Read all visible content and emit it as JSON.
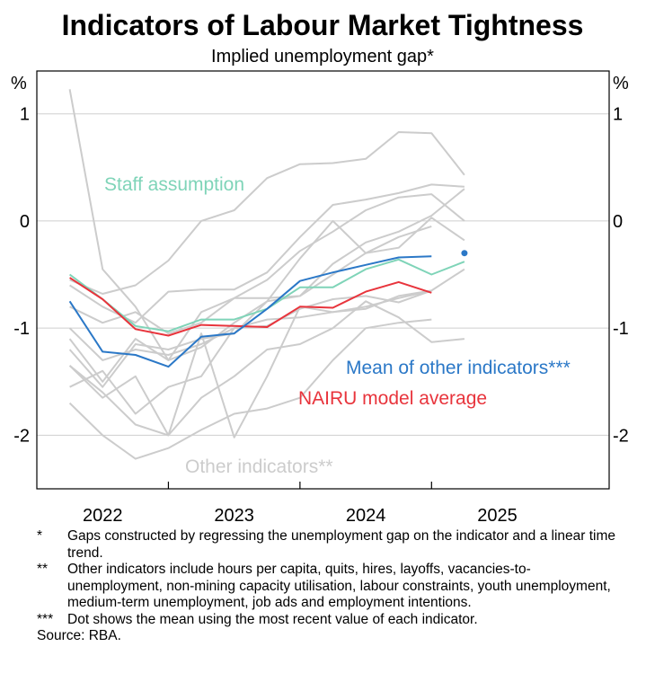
{
  "chart_data": {
    "type": "line",
    "title": "Indicators of Labour Market Tightness",
    "subtitle": "Implied unemployment gap*",
    "y_unit_left": "%",
    "y_unit_right": "%",
    "ylim": [
      -2.5,
      1.4
    ],
    "yticks": [
      1,
      0,
      -1,
      -2
    ],
    "ytick_labels": [
      "1",
      "0",
      "-1",
      "-2"
    ],
    "xlim": [
      2021.5,
      2025.85
    ],
    "xticks": [
      2022,
      2023,
      2024,
      2025
    ],
    "xtick_labels": [
      "2022",
      "2023",
      "2024",
      "2025"
    ],
    "year_separators": [
      2022.5,
      2023.5,
      2024.5
    ],
    "grid": true,
    "series": [
      {
        "name": "Staff assumption",
        "color": "#7fd4b8",
        "x": [
          2021.75,
          2022.0,
          2022.25,
          2022.5,
          2022.75,
          2023.0,
          2023.25,
          2023.5,
          2023.75,
          2024.0,
          2024.25,
          2024.5,
          2024.75
        ],
        "values": [
          -0.5,
          -0.73,
          -0.98,
          -1.03,
          -0.92,
          -0.92,
          -0.82,
          -0.62,
          -0.62,
          -0.45,
          -0.36,
          -0.5,
          -0.38
        ]
      },
      {
        "name": "NAIRU model average",
        "color": "#e8343c",
        "x": [
          2021.75,
          2022.0,
          2022.25,
          2022.5,
          2022.75,
          2023.0,
          2023.25,
          2023.5,
          2023.75,
          2024.0,
          2024.25,
          2024.5
        ],
        "values": [
          -0.53,
          -0.73,
          -1.01,
          -1.07,
          -0.97,
          -0.98,
          -0.99,
          -0.8,
          -0.81,
          -0.66,
          -0.57,
          -0.67
        ]
      },
      {
        "name": "Mean of other indicators***",
        "color": "#2b78c7",
        "x": [
          2021.75,
          2022.0,
          2022.25,
          2022.5,
          2022.75,
          2023.0,
          2023.25,
          2023.5,
          2023.75,
          2024.0,
          2024.25,
          2024.5
        ],
        "values": [
          -0.75,
          -1.22,
          -1.25,
          -1.36,
          -1.08,
          -1.05,
          -0.82,
          -0.56,
          -0.48,
          -0.41,
          -0.34,
          -0.33
        ],
        "dot": {
          "x": 2024.75,
          "value": -0.3
        }
      },
      {
        "name": "Other indicators**",
        "color": "#cccccc",
        "lines": [
          {
            "x": [
              2021.75,
              2022.0,
              2022.25,
              2022.5,
              2022.75,
              2023.0,
              2023.25,
              2023.5,
              2023.75,
              2024.0,
              2024.25,
              2024.5,
              2024.75
            ],
            "values": [
              1.23,
              -0.45,
              -0.8,
              -1.3,
              -0.85,
              -0.72,
              -0.72,
              -0.7,
              -0.4,
              -0.2,
              -0.1,
              0.05,
              0.3
            ]
          },
          {
            "x": [
              2021.75,
              2022.0,
              2022.25,
              2022.5,
              2022.75,
              2023.0,
              2023.25,
              2023.5,
              2023.75,
              2024.0,
              2024.25,
              2024.5,
              2024.75
            ],
            "values": [
              -0.55,
              -0.68,
              -0.6,
              -0.37,
              0.0,
              0.1,
              0.4,
              0.53,
              0.54,
              0.58,
              0.83,
              0.82,
              0.43
            ]
          },
          {
            "x": [
              2021.75,
              2022.0,
              2022.25,
              2022.5,
              2022.75,
              2023.0,
              2023.25,
              2023.5,
              2023.75,
              2024.0,
              2024.25,
              2024.5,
              2024.75
            ],
            "values": [
              -0.6,
              -0.8,
              -0.95,
              -0.66,
              -0.64,
              -0.64,
              -0.48,
              -0.15,
              0.15,
              0.2,
              0.26,
              0.34,
              0.32
            ]
          },
          {
            "x": [
              2021.75,
              2022.0,
              2022.25,
              2022.5,
              2022.75,
              2023.0,
              2023.25,
              2023.5,
              2023.75,
              2024.0,
              2024.25,
              2024.5,
              2024.75
            ],
            "values": [
              -0.8,
              -0.95,
              -0.85,
              -1.05,
              -0.95,
              -0.72,
              -0.55,
              -0.28,
              -0.1,
              0.1,
              0.22,
              0.25,
              0.0
            ]
          },
          {
            "x": [
              2021.75,
              2022.0,
              2022.25,
              2022.5,
              2022.75,
              2023.0,
              2023.25,
              2023.5,
              2023.75,
              2024.0,
              2024.25,
              2024.5,
              2024.75
            ],
            "values": [
              -1.1,
              -1.5,
              -1.1,
              -1.3,
              -1.18,
              -0.95,
              -0.75,
              -0.35,
              0.0,
              -0.3,
              -0.25,
              0.03,
              -0.18
            ]
          },
          {
            "x": [
              2021.75,
              2022.0,
              2022.25,
              2022.5,
              2022.75,
              2023.0,
              2023.25,
              2023.5,
              2023.75,
              2024.0,
              2024.25,
              2024.5
            ],
            "values": [
              -1.2,
              -1.55,
              -1.15,
              -1.2,
              -1.1,
              -1.05,
              -0.75,
              -0.7,
              -0.5,
              -0.3,
              -0.15,
              -0.05
            ]
          },
          {
            "x": [
              2021.75,
              2022.0,
              2022.25,
              2022.5,
              2022.75,
              2023.0,
              2023.25,
              2023.5,
              2023.75,
              2024.0,
              2024.25,
              2024.5
            ],
            "values": [
              -1.35,
              -1.65,
              -1.45,
              -2.0,
              -1.05,
              -2.02,
              -1.45,
              -0.8,
              -0.85,
              -0.82,
              -0.7,
              -0.65
            ]
          },
          {
            "x": [
              2021.75,
              2022.0,
              2022.25,
              2022.5,
              2022.75,
              2023.0,
              2023.25,
              2023.5,
              2023.75,
              2024.0,
              2024.25,
              2024.5
            ],
            "values": [
              -1.55,
              -1.4,
              -1.8,
              -1.55,
              -1.45,
              -1.0,
              -0.98,
              -0.82,
              -0.73,
              -0.7,
              -0.76,
              -0.65
            ]
          },
          {
            "x": [
              2021.75,
              2022.0,
              2022.25,
              2022.5,
              2022.75,
              2023.0,
              2023.25,
              2023.5,
              2023.75,
              2024.0,
              2024.25,
              2024.5,
              2024.75
            ],
            "values": [
              -1.0,
              -1.3,
              -1.2,
              -1.25,
              -1.15,
              -1.0,
              -0.92,
              -0.9,
              -0.85,
              -0.8,
              -0.72,
              -0.65,
              -0.45
            ]
          },
          {
            "x": [
              2021.75,
              2022.0,
              2022.25,
              2022.5,
              2022.75,
              2023.0,
              2023.25,
              2023.5,
              2023.75,
              2024.0,
              2024.25,
              2024.5
            ],
            "values": [
              -1.7,
              -2.0,
              -2.22,
              -2.12,
              -1.95,
              -1.8,
              -1.75,
              -1.65,
              -1.3,
              -1.0,
              -0.95,
              -0.92
            ]
          },
          {
            "x": [
              2021.75,
              2022.0,
              2022.25,
              2022.5,
              2022.75,
              2023.0,
              2023.25,
              2023.5,
              2023.75,
              2024.0,
              2024.25,
              2024.5,
              2024.75
            ],
            "values": [
              -1.35,
              -1.6,
              -1.9,
              -2.0,
              -1.65,
              -1.45,
              -1.2,
              -1.15,
              -1.0,
              -0.75,
              -0.9,
              -1.13,
              -1.1
            ]
          }
        ]
      }
    ],
    "annotations": [
      {
        "text": "Staff assumption",
        "series": "Staff assumption"
      },
      {
        "text": "Mean of other indicators***",
        "series": "Mean of other indicators***"
      },
      {
        "text": "NAIRU model average",
        "series": "NAIRU model average"
      },
      {
        "text": "Other indicators**",
        "series": "Other indicators**"
      }
    ]
  },
  "notes": [
    {
      "mark": "*",
      "text": "Gaps constructed by regressing the unemployment gap on the indicator and a linear time trend."
    },
    {
      "mark": "**",
      "text": "Other indicators include hours per capita, quits, hires, layoffs, vacancies-to-unemployment, non-mining capacity utilisation, labour constraints, youth unemployment, medium-term unemployment, job ads and employment intentions."
    },
    {
      "mark": "***",
      "text": "Dot shows the mean using the most recent value of each indicator."
    }
  ],
  "source": "Source:  RBA."
}
